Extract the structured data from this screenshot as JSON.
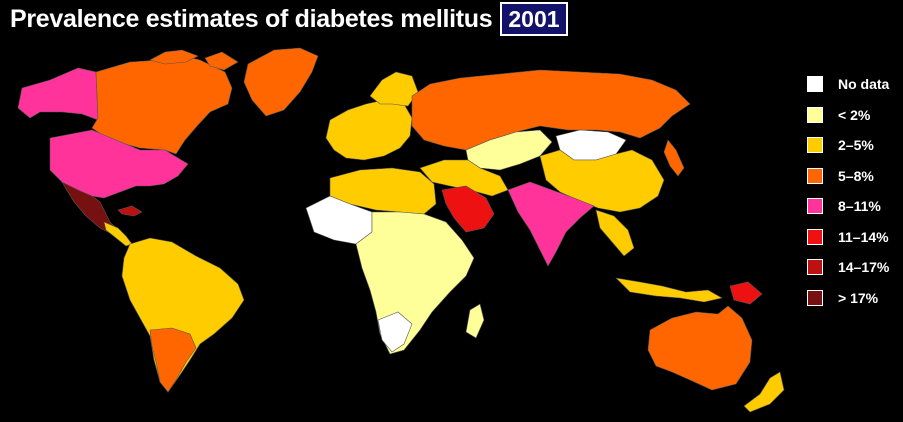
{
  "title": "Prevalence estimates of diabetes mellitus",
  "year": "2001",
  "colors": {
    "background": "#000000",
    "no_data": "#ffffff",
    "lt2": "#ffff99",
    "c2_5": "#ffcc00",
    "c5_8": "#ff6600",
    "c8_11": "#ff3399",
    "c11_14": "#ee1111",
    "c14_17": "#bb1111",
    "gt17": "#771111"
  },
  "legend": [
    {
      "label": "No data",
      "color": "#ffffff"
    },
    {
      "label": "< 2%",
      "color": "#ffff99"
    },
    {
      "label": "2–5%",
      "color": "#ffcc00"
    },
    {
      "label": "5–8%",
      "color": "#ff6600"
    },
    {
      "label": "8–11%",
      "color": "#ff3399"
    },
    {
      "label": "11–14%",
      "color": "#ee1111"
    },
    {
      "label": "14–17%",
      "color": "#bb1111"
    },
    {
      "label": "> 17%",
      "color": "#771111"
    }
  ]
}
